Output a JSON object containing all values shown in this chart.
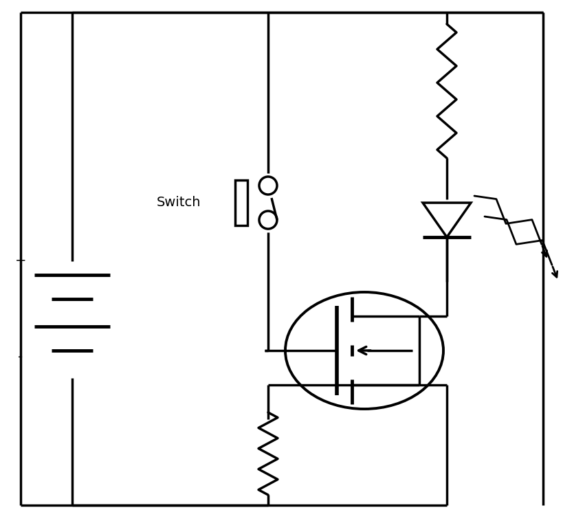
{
  "bg_color": "#ffffff",
  "line_color": "#000000",
  "lw": 2.5,
  "switch_label": "Switch"
}
